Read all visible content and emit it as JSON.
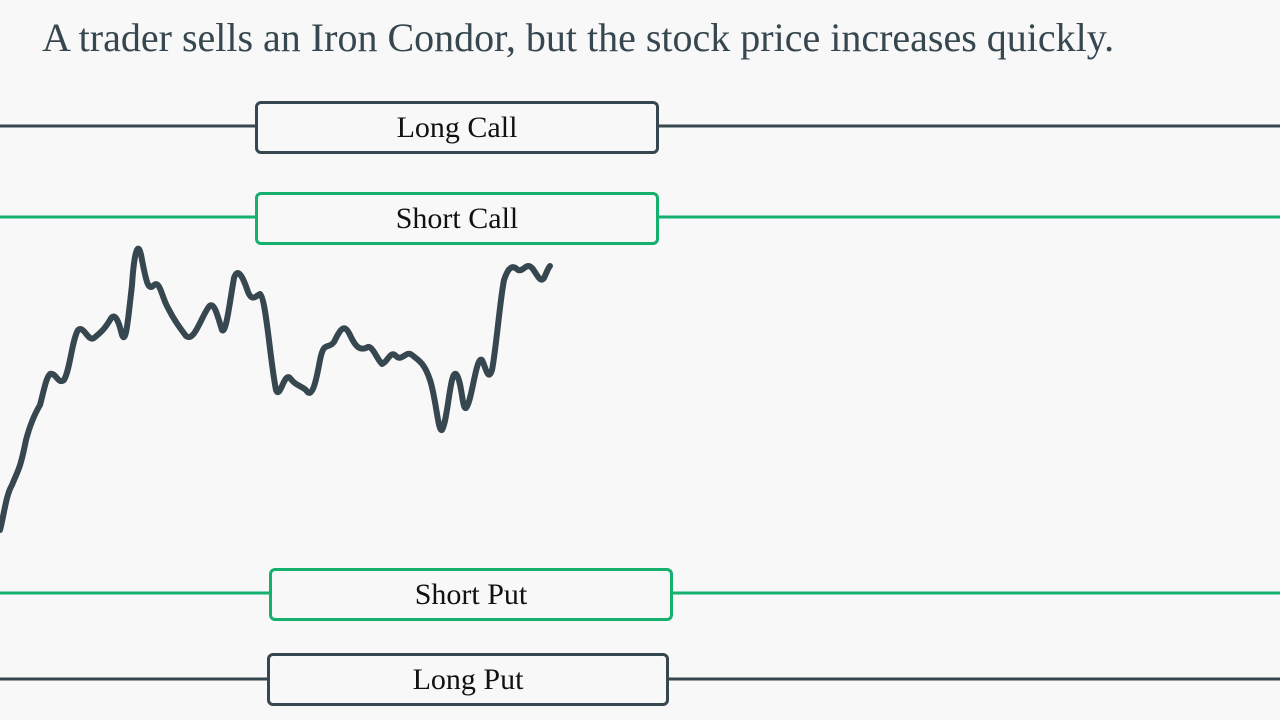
{
  "headline": "A trader sells an Iron Condor, but the stock price increases quickly.",
  "colors": {
    "long_leg": "#37474f",
    "short_leg": "#14b06e",
    "price_line": "#37474f",
    "background": "#f8f8f8",
    "text": "#111111"
  },
  "legs": {
    "long_call": "Long Call",
    "short_call": "Short Call",
    "short_put": "Short Put",
    "long_put": "Long Put"
  }
}
